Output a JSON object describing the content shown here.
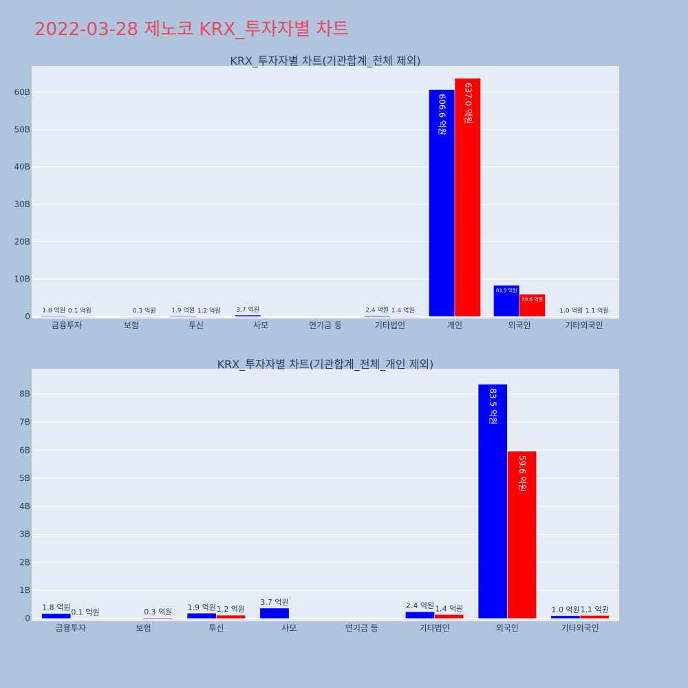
{
  "title": "2022-03-28 제노코 KRX_투자자별 차트",
  "colors": {
    "buy": "#0000ff",
    "sell": "#ff0000",
    "plot_bg": "#e5ecf6",
    "page_bg": "#b0c4de"
  },
  "chart_data": [
    {
      "type": "bar",
      "title": "KRX_투자자별 차트(기관합계_전체 제외)",
      "categories": [
        "금융투자",
        "보험",
        "투신",
        "사모",
        "연기금 등",
        "기타법인",
        "개인",
        "외국인",
        "기타외국인"
      ],
      "series": [
        {
          "color": "#0000ff",
          "values": [
            180000000,
            null,
            190000000,
            370000000,
            null,
            240000000,
            60660000000,
            8350000000,
            100000000
          ],
          "labels": [
            "1.8 억원",
            "",
            "1.9 억원",
            "3.7 억원",
            "",
            "2.4 억원",
            "606.6 억원",
            "83.5 억원",
            "1.0 억원"
          ]
        },
        {
          "color": "#ff0000",
          "values": [
            10000000,
            30000000,
            120000000,
            null,
            null,
            140000000,
            63700000000,
            5960000000,
            110000000
          ],
          "labels": [
            "0.1 억원",
            "0.3 억원",
            "1.2 억원",
            "",
            "",
            "1.4 억원",
            "637.0 억원",
            "59.6 억원",
            "1.1 억원"
          ]
        }
      ],
      "yticks": [
        {
          "v": 0,
          "t": "0"
        },
        {
          "v": 10000000000,
          "t": "10B"
        },
        {
          "v": 20000000000,
          "t": "20B"
        },
        {
          "v": 30000000000,
          "t": "30B"
        },
        {
          "v": 40000000000,
          "t": "40B"
        },
        {
          "v": 50000000000,
          "t": "50B"
        },
        {
          "v": 60000000000,
          "t": "60B"
        }
      ],
      "ylim": [
        0,
        67000000000
      ],
      "grid": true
    },
    {
      "type": "bar",
      "title": "KRX_투자자별 차트(기관합계_전체_개인 제외)",
      "categories": [
        "금융투자",
        "보험",
        "투신",
        "사모",
        "연기금 등",
        "기타법인",
        "외국인",
        "기타외국인"
      ],
      "series": [
        {
          "color": "#0000ff",
          "values": [
            180000000,
            null,
            190000000,
            370000000,
            null,
            240000000,
            8350000000,
            100000000
          ],
          "labels": [
            "1.8 억원",
            "",
            "1.9 억원",
            "3.7 억원",
            "",
            "2.4 억원",
            "83.5 억원",
            "1.0 억원"
          ]
        },
        {
          "color": "#ff0000",
          "values": [
            10000000,
            30000000,
            120000000,
            null,
            null,
            140000000,
            5960000000,
            110000000
          ],
          "labels": [
            "0.1 억원",
            "0.3 억원",
            "1.2 억원",
            "",
            "",
            "1.4 억원",
            "59.6 억원",
            "1.1 억원"
          ]
        }
      ],
      "yticks": [
        {
          "v": 0,
          "t": "0"
        },
        {
          "v": 1000000000,
          "t": "1B"
        },
        {
          "v": 2000000000,
          "t": "2B"
        },
        {
          "v": 3000000000,
          "t": "3B"
        },
        {
          "v": 4000000000,
          "t": "4B"
        },
        {
          "v": 5000000000,
          "t": "5B"
        },
        {
          "v": 6000000000,
          "t": "6B"
        },
        {
          "v": 7000000000,
          "t": "7B"
        },
        {
          "v": 8000000000,
          "t": "8B"
        }
      ],
      "ylim": [
        0,
        8900000000
      ],
      "grid": true
    }
  ]
}
